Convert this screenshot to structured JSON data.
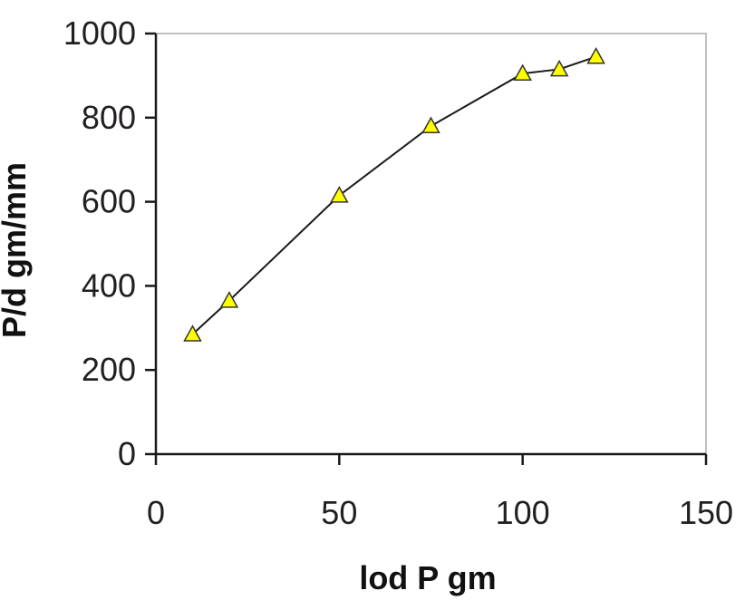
{
  "chart_data": {
    "type": "line",
    "title": "",
    "xlabel": "lod P gm",
    "ylabel": "P/d gm/mm",
    "xlim": [
      0,
      150
    ],
    "ylim": [
      0,
      1000
    ],
    "x_ticks": [
      0,
      50,
      100,
      150
    ],
    "y_ticks": [
      0,
      200,
      400,
      600,
      800,
      1000
    ],
    "grid": false,
    "legend": "none",
    "series": [
      {
        "marker": "triangle",
        "line_color": "#1a1a1a",
        "marker_fill": "#ffff00",
        "marker_edge": "#333333",
        "points": [
          {
            "x": 10,
            "y": 285
          },
          {
            "x": 20,
            "y": 365
          },
          {
            "x": 50,
            "y": 615
          },
          {
            "x": 75,
            "y": 780
          },
          {
            "x": 100,
            "y": 905
          },
          {
            "x": 110,
            "y": 915
          },
          {
            "x": 120,
            "y": 945
          }
        ]
      }
    ],
    "colors": {
      "axis": "#1a1a1a",
      "plot_border": "#c0c0c0",
      "background": "#ffffff"
    }
  }
}
